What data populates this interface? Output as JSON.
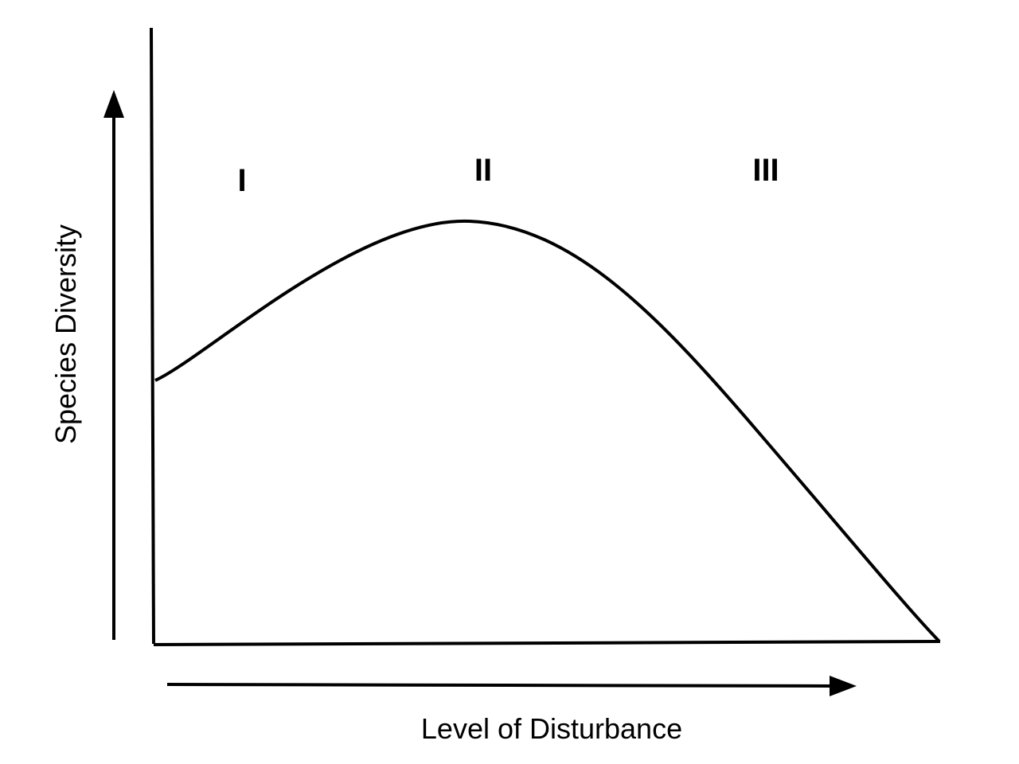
{
  "axes": {
    "y_label": "Species Diversity",
    "x_label": "Level of Disturbance"
  },
  "regions": [
    "I",
    "II",
    "III"
  ]
}
